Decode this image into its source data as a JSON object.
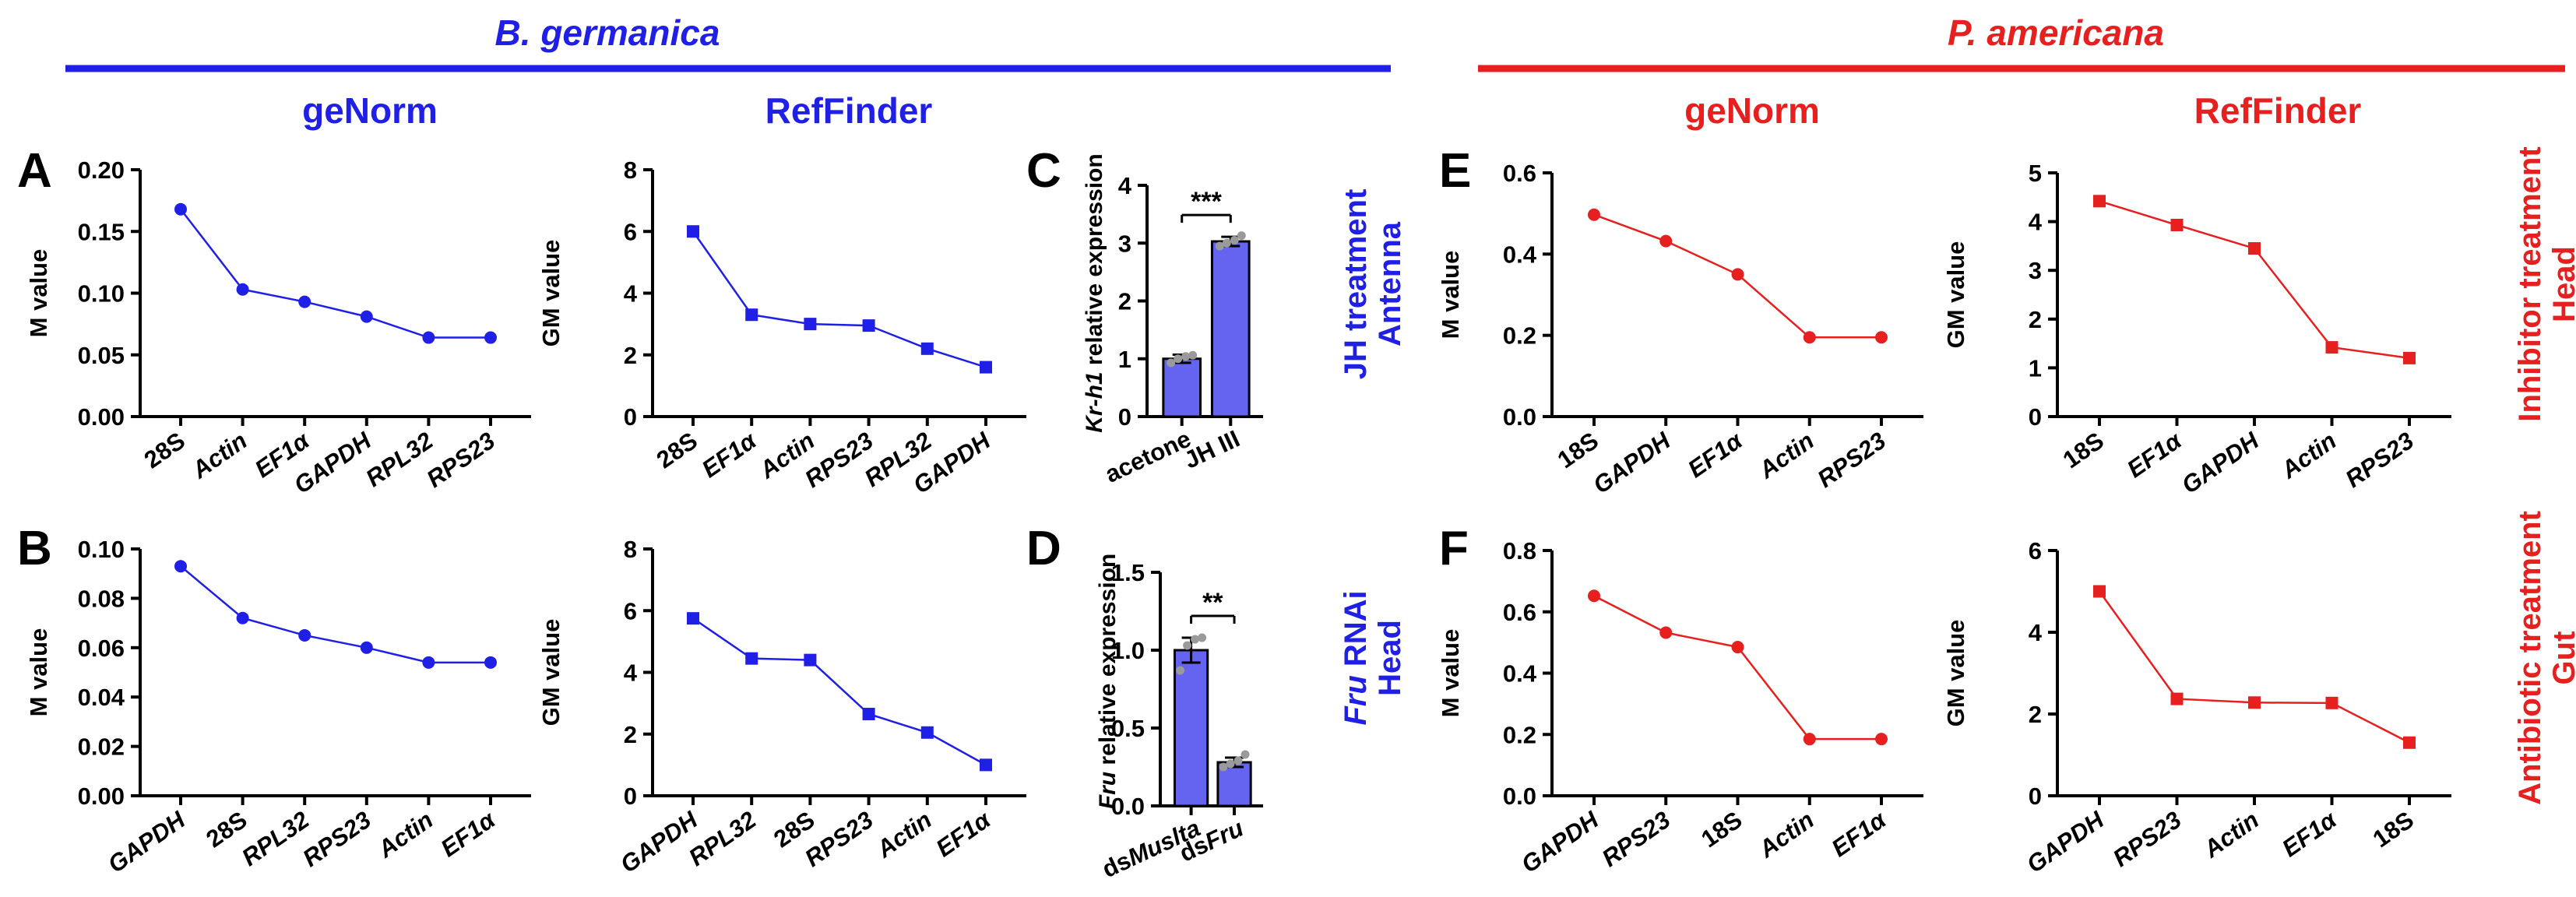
{
  "headers": {
    "left_species": "B. germanica",
    "right_species": "P. americana",
    "left_color": "#1f1fe6",
    "right_color": "#e61f1f",
    "col_genorm_left": "geNorm",
    "col_reffinder_left": "RefFinder",
    "col_genorm_right": "geNorm",
    "col_reffinder_right": "RefFinder"
  },
  "side_labels": {
    "jh_line1": "JH treatment",
    "jh_line2": "Antenna",
    "fru_line1_italic": "Fru",
    "fru_line1_rest": " RNAi",
    "fru_line2": "Head",
    "inhib_line1": "Inhibitor treatment",
    "inhib_line2": "Head",
    "anti_line1": "Antibiotic treatment",
    "anti_line2": "Gut"
  },
  "panel_letters": {
    "A": "A",
    "B": "B",
    "C": "C",
    "D": "D",
    "E": "E",
    "F": "F"
  },
  "chart_data": [
    {
      "id": "A",
      "type": "line",
      "marker": "circle",
      "color": "#1f1fe6",
      "categories": [
        "28S",
        "Actin",
        "EF1α",
        "GAPDH",
        "RPL32",
        "RPS23"
      ],
      "italic": [
        false,
        true,
        true,
        true,
        true,
        true
      ],
      "values": [
        0.168,
        0.103,
        0.093,
        0.081,
        0.064,
        0.064
      ],
      "ylabel": "M value",
      "ylim": [
        0,
        0.2
      ],
      "yticks": [
        0.0,
        0.05,
        0.1,
        0.15,
        0.2
      ],
      "yticklabels": [
        "0.00",
        "0.05",
        "0.10",
        "0.15",
        "0.20"
      ]
    },
    {
      "id": "A2",
      "type": "line",
      "marker": "square",
      "color": "#1f1fe6",
      "categories": [
        "28S",
        "EF1α",
        "Actin",
        "RPS23",
        "RPL32",
        "GAPDH"
      ],
      "italic": [
        false,
        true,
        true,
        true,
        true,
        true
      ],
      "values": [
        6.0,
        3.3,
        3.0,
        2.95,
        2.2,
        1.6
      ],
      "ylabel": "GM value",
      "ylim": [
        0,
        8
      ],
      "yticks": [
        0,
        2,
        4,
        6,
        8
      ],
      "yticklabels": [
        "0",
        "2",
        "4",
        "6",
        "8"
      ]
    },
    {
      "id": "B",
      "type": "line",
      "marker": "circle",
      "color": "#1f1fe6",
      "categories": [
        "GAPDH",
        "28S",
        "RPL32",
        "RPS23",
        "Actin",
        "EF1α"
      ],
      "italic": [
        true,
        false,
        true,
        true,
        true,
        true
      ],
      "values": [
        0.093,
        0.072,
        0.065,
        0.06,
        0.054,
        0.054
      ],
      "ylabel": "M value",
      "ylim": [
        0,
        0.1
      ],
      "yticks": [
        0,
        0.02,
        0.04,
        0.06,
        0.08,
        0.1
      ],
      "yticklabels": [
        "0.00",
        "0.02",
        "0.04",
        "0.06",
        "0.08",
        "0.10"
      ]
    },
    {
      "id": "B2",
      "type": "line",
      "marker": "square",
      "color": "#1f1fe6",
      "categories": [
        "GAPDH",
        "RPL32",
        "28S",
        "RPS23",
        "Actin",
        "EF1α"
      ],
      "italic": [
        true,
        true,
        false,
        true,
        true,
        true
      ],
      "values": [
        5.75,
        4.45,
        4.4,
        2.65,
        2.05,
        1.0
      ],
      "ylabel": "GM value",
      "ylim": [
        0,
        8
      ],
      "yticks": [
        0,
        2,
        4,
        6,
        8
      ],
      "yticklabels": [
        "0",
        "2",
        "4",
        "6",
        "8"
      ]
    },
    {
      "id": "C",
      "type": "bar",
      "color": "#6464f0",
      "categories": [
        "acetone",
        "JH III"
      ],
      "values": [
        1.0,
        3.03
      ],
      "errors": [
        0.07,
        0.08
      ],
      "dots": [
        [
          0.93,
          1.0,
          1.04,
          1.06
        ],
        [
          2.95,
          3.0,
          3.05,
          3.13
        ]
      ],
      "ylabel_italic": "Kr-h1",
      "ylabel_rest": " relative expression",
      "ylim": [
        0,
        4
      ],
      "yticks": [
        0,
        1,
        2,
        3,
        4
      ],
      "yticklabels": [
        "0",
        "1",
        "2",
        "3",
        "4"
      ],
      "significance": "***"
    },
    {
      "id": "D",
      "type": "bar",
      "color": "#6464f0",
      "categories": [
        "dsMuslta",
        "dsFru"
      ],
      "values": [
        1.0,
        0.28
      ],
      "errors": [
        0.08,
        0.03
      ],
      "dots": [
        [
          0.87,
          1.03,
          1.07,
          1.08
        ],
        [
          0.25,
          0.27,
          0.29,
          0.33
        ]
      ],
      "ylabel_italic": "Fru",
      "ylabel_rest": " relative expression",
      "ylim": [
        0,
        1.5
      ],
      "yticks": [
        0,
        0.5,
        1.0,
        1.5
      ],
      "yticklabels": [
        "0.0",
        "0.5",
        "1.0",
        "1.5"
      ],
      "significance": "**"
    },
    {
      "id": "E",
      "type": "line",
      "marker": "circle",
      "color": "#e61f1f",
      "categories": [
        "18S",
        "GAPDH",
        "EF1α",
        "Actin",
        "RPS23"
      ],
      "italic": [
        false,
        true,
        true,
        true,
        true
      ],
      "values": [
        0.497,
        0.432,
        0.35,
        0.195,
        0.195
      ],
      "ylabel": "M value",
      "ylim": [
        0,
        0.6
      ],
      "yticks": [
        0,
        0.2,
        0.4,
        0.6
      ],
      "yticklabels": [
        "0.0",
        "0.2",
        "0.4",
        "0.6"
      ]
    },
    {
      "id": "E2",
      "type": "line",
      "marker": "square",
      "color": "#e61f1f",
      "categories": [
        "18S",
        "EF1α",
        "GAPDH",
        "Actin",
        "RPS23"
      ],
      "italic": [
        false,
        true,
        true,
        true,
        true
      ],
      "values": [
        4.42,
        3.93,
        3.45,
        1.42,
        1.2
      ],
      "ylabel": "GM value",
      "ylim": [
        0,
        5
      ],
      "yticks": [
        0,
        1,
        2,
        3,
        4,
        5
      ],
      "yticklabels": [
        "0",
        "1",
        "2",
        "3",
        "4",
        "5"
      ]
    },
    {
      "id": "F",
      "type": "line",
      "marker": "circle",
      "color": "#e61f1f",
      "categories": [
        "GAPDH",
        "RPS23",
        "18S",
        "Actin",
        "EF1α"
      ],
      "italic": [
        true,
        true,
        false,
        true,
        true
      ],
      "values": [
        0.652,
        0.532,
        0.485,
        0.185,
        0.185
      ],
      "ylabel": "M value",
      "ylim": [
        0,
        0.8
      ],
      "yticks": [
        0,
        0.2,
        0.4,
        0.6,
        0.8
      ],
      "yticklabels": [
        "0.0",
        "0.2",
        "0.4",
        "0.6",
        "0.8"
      ]
    },
    {
      "id": "F2",
      "type": "line",
      "marker": "square",
      "color": "#e61f1f",
      "categories": [
        "GAPDH",
        "RPS23",
        "Actin",
        "EF1α",
        "18S"
      ],
      "italic": [
        true,
        true,
        true,
        true,
        false
      ],
      "values": [
        5.0,
        2.37,
        2.28,
        2.27,
        1.3
      ],
      "ylabel": "GM value",
      "ylim": [
        0,
        6
      ],
      "yticks": [
        0,
        2,
        4,
        6
      ],
      "yticklabels": [
        "0",
        "2",
        "4",
        "6"
      ]
    }
  ]
}
